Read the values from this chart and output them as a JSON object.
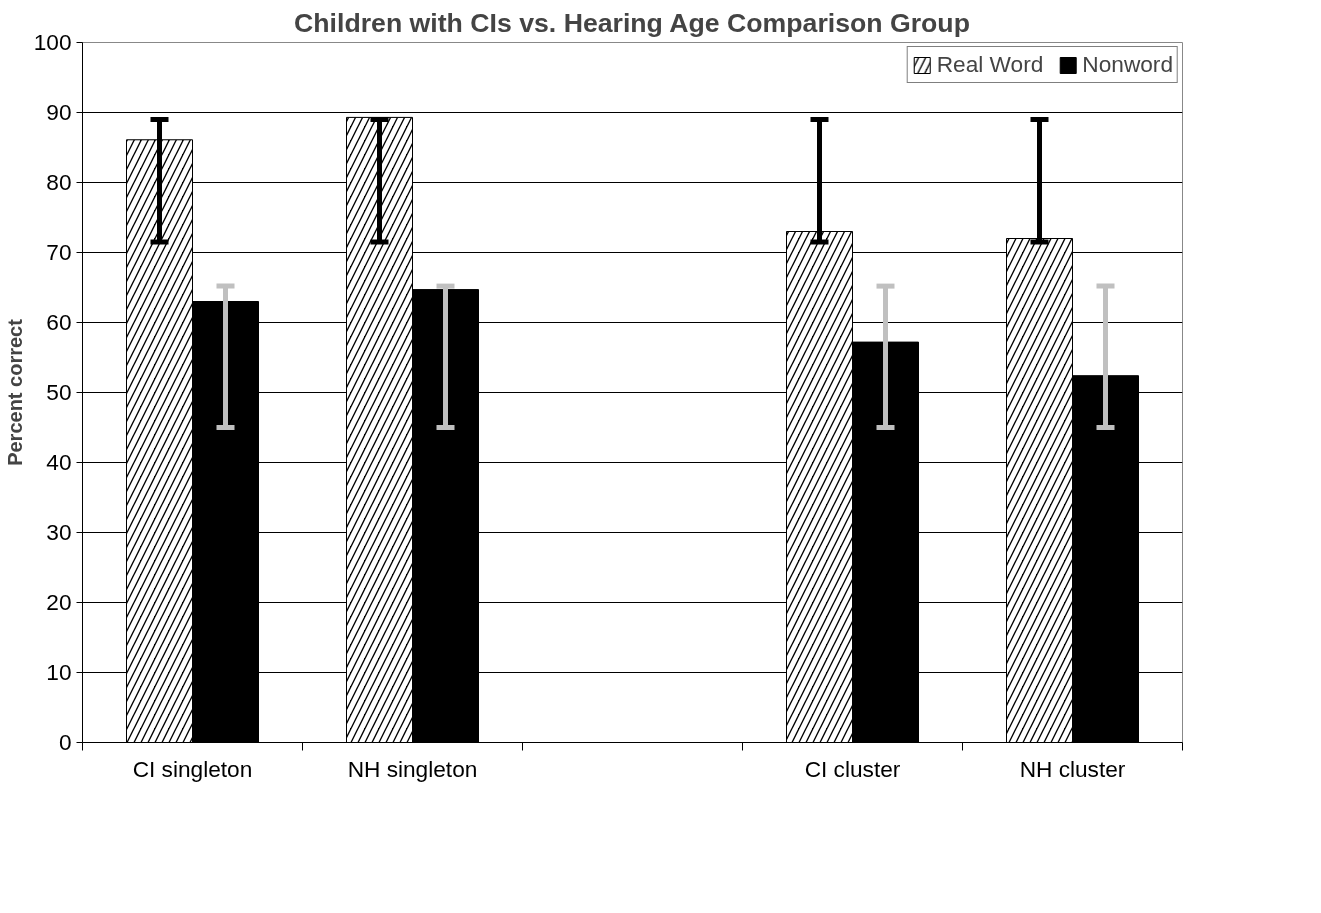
{
  "chart_data": {
    "type": "bar",
    "title": "Children with CIs vs. Hearing Age Comparison Group",
    "ylabel": "Percent correct",
    "categories": [
      "CI singleton",
      "NH singleton",
      null,
      "CI cluster",
      "NH cluster"
    ],
    "series": [
      {
        "name": "Real Word",
        "color": "#000000",
        "values": [
          86.1,
          89.3,
          null,
          73,
          72
        ],
        "errors": [
          [
            71.5,
            89
          ],
          [
            71.5,
            89
          ],
          null,
          [
            71.5,
            89
          ],
          [
            71.5,
            89
          ]
        ]
      },
      {
        "name": "Nonword",
        "color": "#000000",
        "values": [
          63,
          64.7,
          null,
          57.2,
          52.4
        ],
        "errors": [
          [
            45,
            65.2
          ],
          [
            45,
            65.2
          ],
          null,
          [
            45,
            65.2
          ],
          [
            45,
            65.2
          ]
        ]
      }
    ],
    "ylim": [
      0,
      100
    ],
    "yticks": [
      0,
      10,
      20,
      30,
      40,
      50,
      60,
      70,
      80,
      90,
      100
    ],
    "grid": "y",
    "legend": "top right"
  }
}
